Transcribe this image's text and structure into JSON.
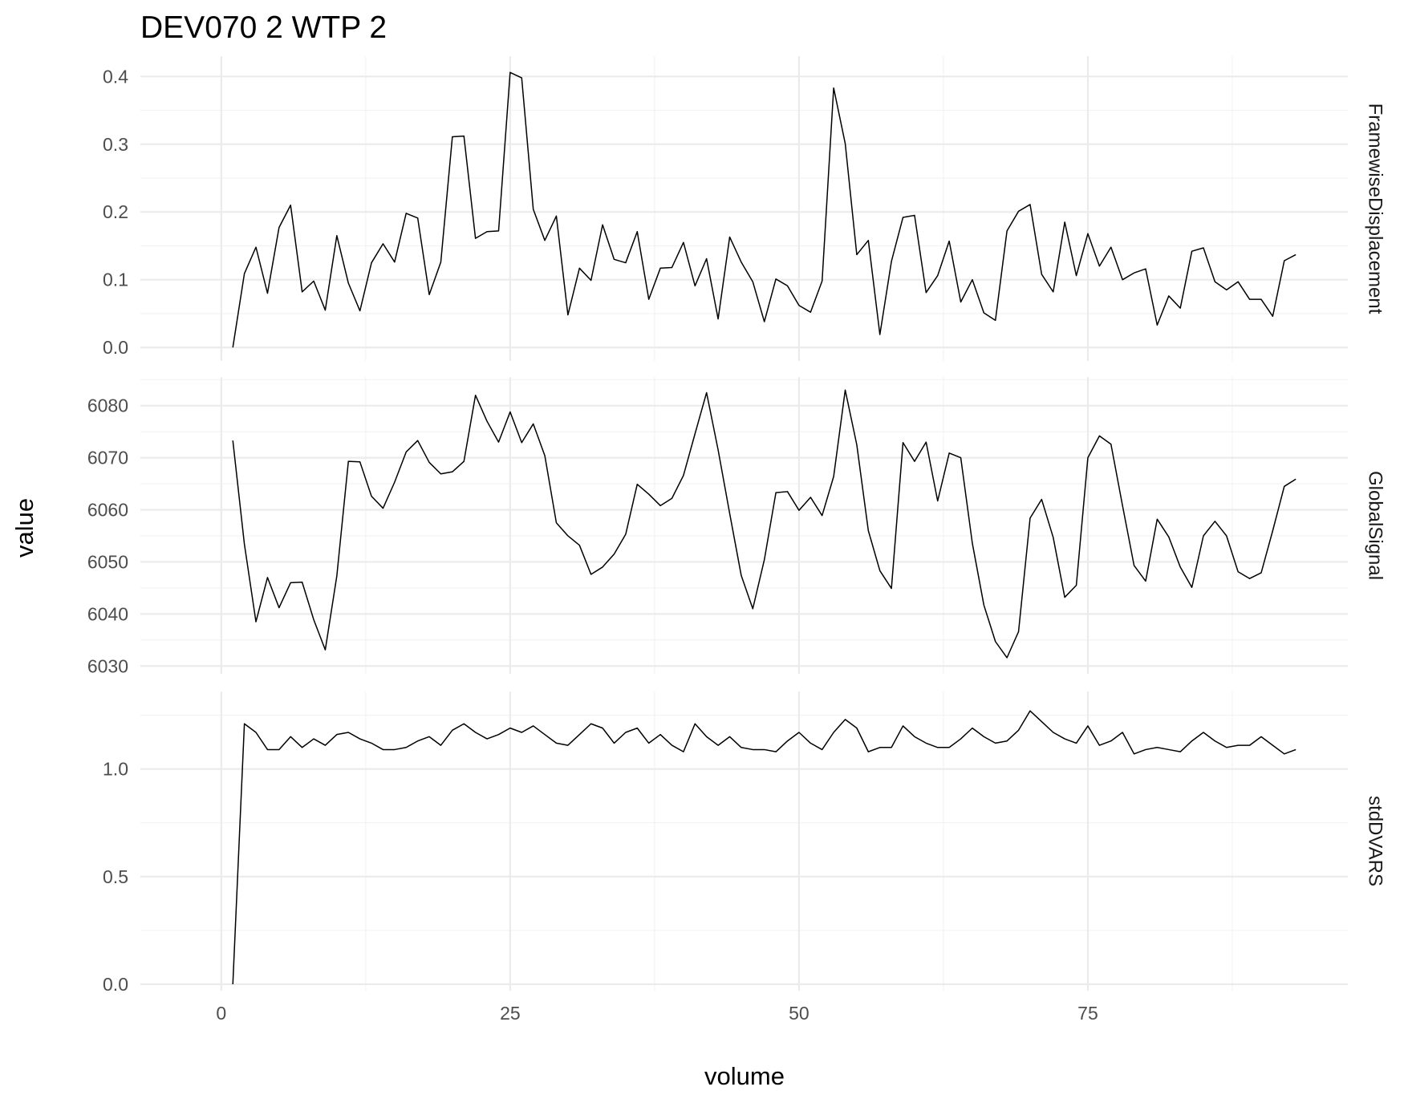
{
  "chart_data": {
    "type": "line",
    "title": "DEV070  2  WTP  2",
    "xlabel": "volume",
    "ylabel": "value",
    "xlim": [
      -7,
      97.5
    ],
    "x_ticks": [
      "0",
      "25",
      "50",
      "75"
    ],
    "grid": true,
    "panels": [
      {
        "name": "FramewiseDisplacement",
        "ylim": [
          -0.02,
          0.43
        ],
        "y_ticks": [
          "0.0",
          "0.1",
          "0.2",
          "0.3",
          "0.4"
        ],
        "x_start": 1,
        "values": [
          0,
          0.109,
          0.148,
          0.08,
          0.177,
          0.21,
          0.082,
          0.098,
          0.055,
          0.165,
          0.095,
          0.054,
          0.125,
          0.153,
          0.126,
          0.198,
          0.191,
          0.078,
          0.126,
          0.311,
          0.312,
          0.161,
          0.171,
          0.172,
          0.406,
          0.398,
          0.204,
          0.158,
          0.194,
          0.048,
          0.117,
          0.099,
          0.181,
          0.13,
          0.125,
          0.171,
          0.071,
          0.117,
          0.118,
          0.155,
          0.091,
          0.131,
          0.042,
          0.163,
          0.126,
          0.097,
          0.038,
          0.101,
          0.091,
          0.062,
          0.052,
          0.098,
          0.383,
          0.301,
          0.137,
          0.158,
          0.019,
          0.127,
          0.192,
          0.195,
          0.081,
          0.106,
          0.157,
          0.067,
          0.1,
          0.051,
          0.04,
          0.172,
          0.201,
          0.211,
          0.108,
          0.082,
          0.185,
          0.106,
          0.168,
          0.12,
          0.148,
          0.1,
          0.11,
          0.116,
          0.033,
          0.076,
          0.058,
          0.142,
          0.147,
          0.097,
          0.085,
          0.097,
          0.071,
          0.071,
          0.046,
          0.128,
          0.137
        ]
      },
      {
        "name": "GlobalSignal",
        "ylim": [
          6028.5,
          6085.5
        ],
        "y_ticks": [
          "6030",
          "6040",
          "6050",
          "6060",
          "6070",
          "6080"
        ],
        "x_start": 1,
        "values": [
          6073.3,
          6053.4,
          6038.5,
          6047.0,
          6041.2,
          6046.0,
          6046.1,
          6038.9,
          6033.1,
          6047.3,
          6069.3,
          6069.2,
          6062.6,
          6060.3,
          6065.3,
          6071.1,
          6073.3,
          6069.1,
          6066.9,
          6067.3,
          6069.3,
          6082.0,
          6077.0,
          6073.0,
          6078.8,
          6072.9,
          6076.5,
          6070.4,
          6057.5,
          6055.0,
          6053.2,
          6047.6,
          6049.0,
          6051.5,
          6055.3,
          6064.9,
          6063.0,
          6060.8,
          6062.2,
          6066.6,
          6074.6,
          6082.5,
          6071.5,
          6059.3,
          6047.4,
          6041.0,
          6050.4,
          6063.3,
          6063.5,
          6059.9,
          6062.4,
          6058.9,
          6066.4,
          6083.0,
          6072.5,
          6056.0,
          6048.3,
          6044.9,
          6072.9,
          6069.3,
          6073.0,
          6061.7,
          6070.9,
          6070.0,
          6053.6,
          6041.7,
          6034.7,
          6031.6,
          6036.6,
          6058.4,
          6062.0,
          6054.7,
          6043.2,
          6045.5,
          6070.0,
          6074.2,
          6072.6,
          6060.8,
          6049.3,
          6046.3,
          6058.2,
          6054.8,
          6049.0,
          6045.1,
          6055.0,
          6057.8,
          6055.0,
          6048.1,
          6046.8,
          6047.9,
          6056.0,
          6064.5,
          6065.9
        ]
      },
      {
        "name": "stdDVARS",
        "ylim": [
          -0.03,
          1.36
        ],
        "y_ticks": [
          "0.0",
          "0.5",
          "1.0"
        ],
        "x_start": 1,
        "values": [
          0,
          1.21,
          1.17,
          1.09,
          1.09,
          1.15,
          1.1,
          1.14,
          1.11,
          1.16,
          1.17,
          1.14,
          1.12,
          1.09,
          1.09,
          1.1,
          1.13,
          1.15,
          1.11,
          1.18,
          1.21,
          1.17,
          1.14,
          1.16,
          1.19,
          1.17,
          1.2,
          1.16,
          1.12,
          1.11,
          1.16,
          1.21,
          1.19,
          1.12,
          1.17,
          1.19,
          1.12,
          1.16,
          1.11,
          1.08,
          1.21,
          1.15,
          1.11,
          1.15,
          1.1,
          1.09,
          1.09,
          1.08,
          1.13,
          1.17,
          1.12,
          1.09,
          1.17,
          1.23,
          1.19,
          1.08,
          1.1,
          1.1,
          1.2,
          1.15,
          1.12,
          1.1,
          1.1,
          1.14,
          1.19,
          1.15,
          1.12,
          1.13,
          1.18,
          1.27,
          1.22,
          1.17,
          1.14,
          1.12,
          1.2,
          1.11,
          1.13,
          1.17,
          1.07,
          1.09,
          1.1,
          1.09,
          1.08,
          1.13,
          1.17,
          1.13,
          1.1,
          1.11,
          1.11,
          1.15,
          1.11,
          1.07,
          1.09
        ]
      }
    ]
  }
}
